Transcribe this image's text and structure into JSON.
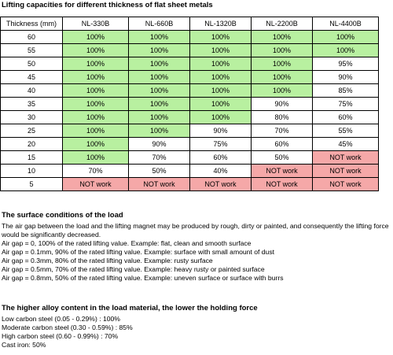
{
  "title": "Lifting capacities for different thickness of flat sheet metals",
  "table": {
    "headers": [
      "Thickness (mm)",
      "NL-330B",
      "NL-660B",
      "NL-1320B",
      "NL-2200B",
      "NL-4400B"
    ],
    "rows": [
      {
        "thickness": "60",
        "cells": [
          {
            "v": "100%",
            "c": "green"
          },
          {
            "v": "100%",
            "c": "green"
          },
          {
            "v": "100%",
            "c": "green"
          },
          {
            "v": "100%",
            "c": "green"
          },
          {
            "v": "100%",
            "c": "green"
          }
        ]
      },
      {
        "thickness": "55",
        "cells": [
          {
            "v": "100%",
            "c": "green"
          },
          {
            "v": "100%",
            "c": "green"
          },
          {
            "v": "100%",
            "c": "green"
          },
          {
            "v": "100%",
            "c": "green"
          },
          {
            "v": "100%",
            "c": "green"
          }
        ]
      },
      {
        "thickness": "50",
        "cells": [
          {
            "v": "100%",
            "c": "green"
          },
          {
            "v": "100%",
            "c": "green"
          },
          {
            "v": "100%",
            "c": "green"
          },
          {
            "v": "100%",
            "c": "green"
          },
          {
            "v": "95%",
            "c": "white"
          }
        ]
      },
      {
        "thickness": "45",
        "cells": [
          {
            "v": "100%",
            "c": "green"
          },
          {
            "v": "100%",
            "c": "green"
          },
          {
            "v": "100%",
            "c": "green"
          },
          {
            "v": "100%",
            "c": "green"
          },
          {
            "v": "90%",
            "c": "white"
          }
        ]
      },
      {
        "thickness": "40",
        "cells": [
          {
            "v": "100%",
            "c": "green"
          },
          {
            "v": "100%",
            "c": "green"
          },
          {
            "v": "100%",
            "c": "green"
          },
          {
            "v": "100%",
            "c": "green"
          },
          {
            "v": "85%",
            "c": "white"
          }
        ]
      },
      {
        "thickness": "35",
        "cells": [
          {
            "v": "100%",
            "c": "green"
          },
          {
            "v": "100%",
            "c": "green"
          },
          {
            "v": "100%",
            "c": "green"
          },
          {
            "v": "90%",
            "c": "white"
          },
          {
            "v": "75%",
            "c": "white"
          }
        ]
      },
      {
        "thickness": "30",
        "cells": [
          {
            "v": "100%",
            "c": "green"
          },
          {
            "v": "100%",
            "c": "green"
          },
          {
            "v": "100%",
            "c": "green"
          },
          {
            "v": "80%",
            "c": "white"
          },
          {
            "v": "60%",
            "c": "white"
          }
        ]
      },
      {
        "thickness": "25",
        "cells": [
          {
            "v": "100%",
            "c": "green"
          },
          {
            "v": "100%",
            "c": "green"
          },
          {
            "v": "90%",
            "c": "white"
          },
          {
            "v": "70%",
            "c": "white"
          },
          {
            "v": "55%",
            "c": "white"
          }
        ]
      },
      {
        "thickness": "20",
        "cells": [
          {
            "v": "100%",
            "c": "green"
          },
          {
            "v": "90%",
            "c": "white"
          },
          {
            "v": "75%",
            "c": "white"
          },
          {
            "v": "60%",
            "c": "white"
          },
          {
            "v": "45%",
            "c": "white"
          }
        ]
      },
      {
        "thickness": "15",
        "cells": [
          {
            "v": "100%",
            "c": "green"
          },
          {
            "v": "70%",
            "c": "white"
          },
          {
            "v": "60%",
            "c": "white"
          },
          {
            "v": "50%",
            "c": "white"
          },
          {
            "v": "NOT work",
            "c": "red"
          }
        ]
      },
      {
        "thickness": "10",
        "cells": [
          {
            "v": "70%",
            "c": "white"
          },
          {
            "v": "50%",
            "c": "white"
          },
          {
            "v": "40%",
            "c": "white"
          },
          {
            "v": "NOT work",
            "c": "red"
          },
          {
            "v": "NOT work",
            "c": "red"
          }
        ]
      },
      {
        "thickness": "5",
        "cells": [
          {
            "v": "NOT work",
            "c": "red"
          },
          {
            "v": "NOT work",
            "c": "red"
          },
          {
            "v": "NOT work",
            "c": "red"
          },
          {
            "v": "NOT work",
            "c": "red"
          },
          {
            "v": "NOT work",
            "c": "red"
          }
        ]
      }
    ]
  },
  "surface": {
    "heading": "The surface conditions of the load",
    "intro": "The air gap between the load and the lifting magnet may be produced by rough, dirty or painted, and consequently the lifting force would be significantly decreased.",
    "lines": [
      "Air gap = 0, 100% of the rated lifting value. Example: flat, clean and smooth surface",
      "Air gap = 0.1mm, 90% of the rated lifting value. Example: surface with small amount of dust",
      "Air gap = 0.3mm, 80% of the rated lifting value. Example: rusty surface",
      "Air gap = 0.5mm, 70% of the rated lifting value. Example: heavy rusty or painted surface",
      "Air gap = 0.8mm, 50% of the rated lifting value. Example: uneven surface or surface with burrs"
    ]
  },
  "alloy": {
    "heading": "The higher alloy content in the load material, the lower the holding force",
    "lines": [
      "Low carbon steel (0.05 - 0.29%) : 100%",
      "Moderate carbon steel (0.30 - 0.59%) : 85%",
      "High carbon steel (0.60 - 0.99%) : 70%",
      "Cast iron: 50%"
    ]
  },
  "colors": {
    "green": "#b8f0a0",
    "red": "#f5a8a8",
    "white": "#ffffff"
  }
}
